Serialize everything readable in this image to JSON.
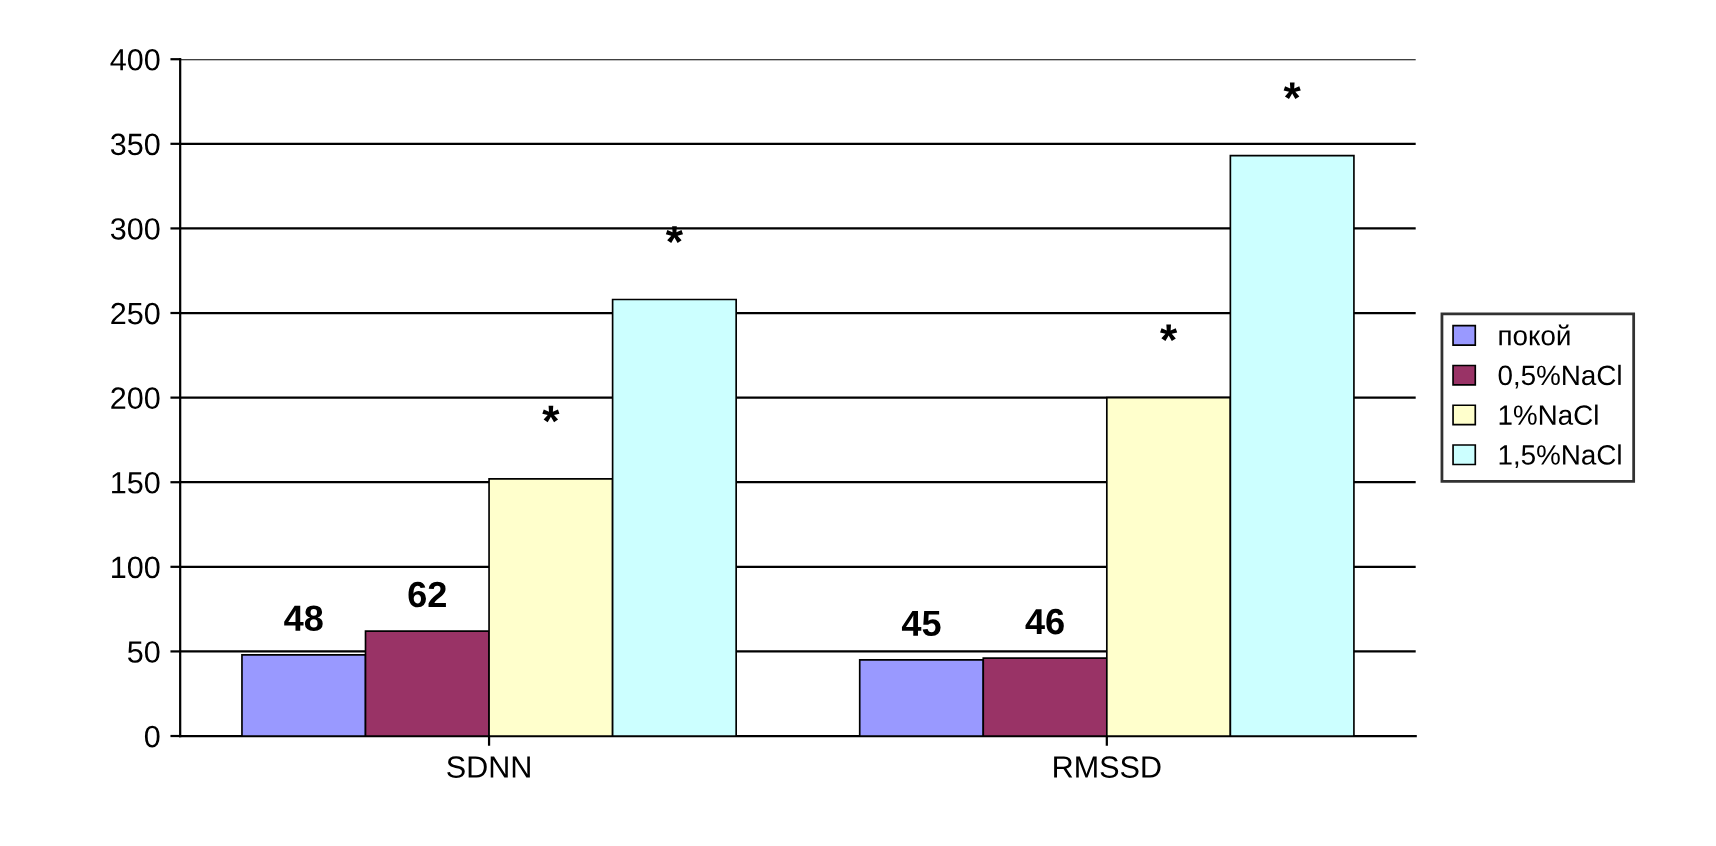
{
  "chart_data": {
    "type": "bar",
    "categories": [
      "SDNN",
      "RMSSD"
    ],
    "series": [
      {
        "name": "покой",
        "color": "#9999ff",
        "values": [
          48,
          45
        ],
        "value_labels": [
          "48",
          "45"
        ]
      },
      {
        "name": "0,5%NaCl",
        "color": "#993366",
        "values": [
          62,
          46
        ],
        "value_labels": [
          "62",
          "46"
        ]
      },
      {
        "name": "1%NaCl",
        "color": "#ffffcc",
        "values": [
          152,
          200
        ]
      },
      {
        "name": "1,5%NaCl",
        "color": "#ccffff",
        "values": [
          258,
          343
        ]
      }
    ],
    "annotations": [
      "*",
      "*",
      "*",
      "*"
    ],
    "ylim": [
      0,
      400
    ],
    "yticks": [
      0,
      50,
      100,
      150,
      200,
      250,
      300,
      350,
      400
    ],
    "grid": "y",
    "legend": "right"
  }
}
